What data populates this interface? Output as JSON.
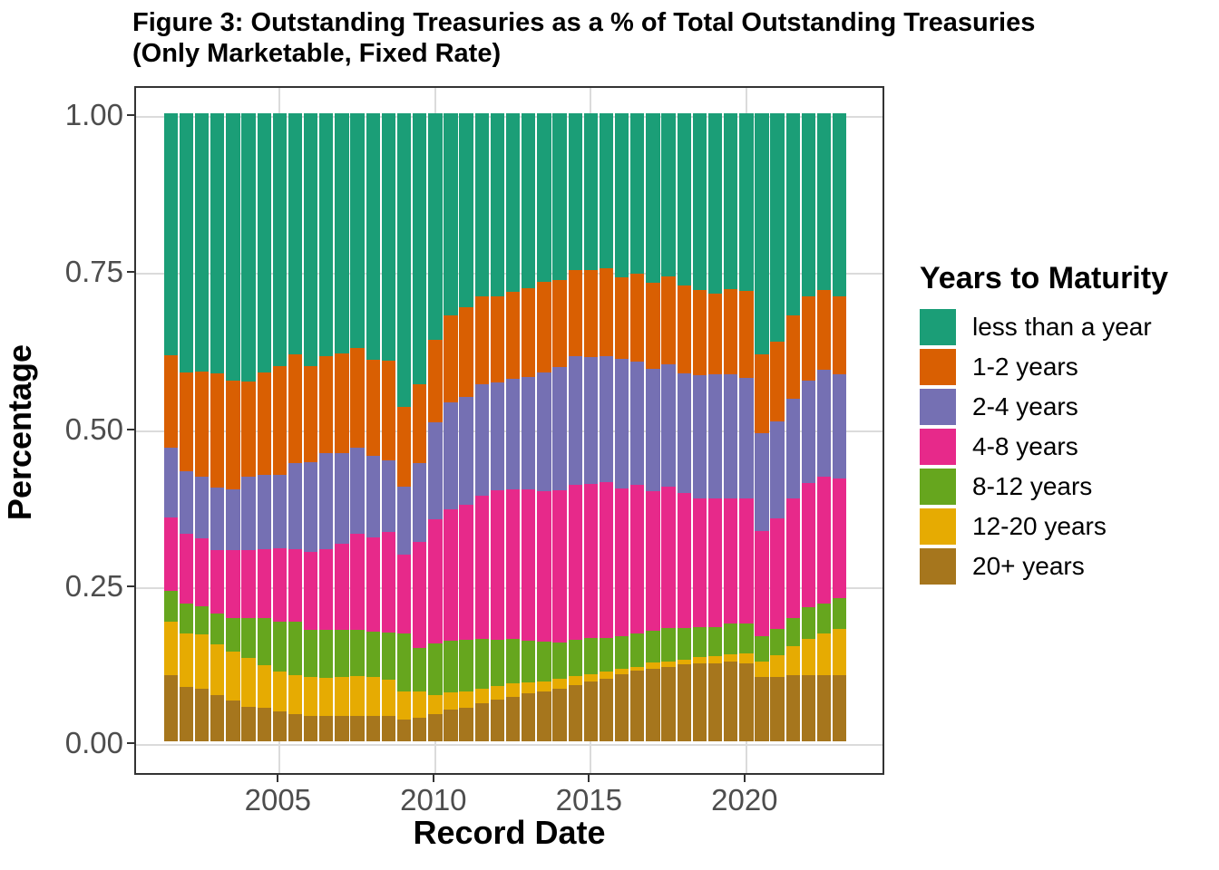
{
  "title": {
    "line1": "Figure 3: Outstanding Treasuries as a % of Total Outstanding Treasuries",
    "line2": "(Only Marketable, Fixed Rate)"
  },
  "y_axis": {
    "label": "Percentage",
    "ticks": [
      {
        "label": "0.00",
        "value": 0.0
      },
      {
        "label": "0.25",
        "value": 0.25
      },
      {
        "label": "0.50",
        "value": 0.5
      },
      {
        "label": "0.75",
        "value": 0.75
      },
      {
        "label": "1.00",
        "value": 1.0
      }
    ]
  },
  "x_axis": {
    "label": "Record Date",
    "ticks": [
      {
        "label": "2005",
        "year": 2005
      },
      {
        "label": "2010",
        "year": 2010
      },
      {
        "label": "2015",
        "year": 2015
      },
      {
        "label": "2020",
        "year": 2020
      }
    ]
  },
  "legend": {
    "title": "Years to Maturity"
  },
  "colors": {
    "background": "#FFFFFF",
    "panel_border": "#333333",
    "gridline": "#DBDBDB",
    "tick_label": "#4D4D4D",
    "tick_mark": "#333333",
    "axis_title": "#000000"
  },
  "chart_data": {
    "type": "bar",
    "stacked": true,
    "normalized": true,
    "title": "Figure 3: Outstanding Treasuries as a % of Total Outstanding Treasuries (Only Marketable, Fixed Rate)",
    "xlabel": "Record Date",
    "ylabel": "Percentage",
    "ylim": [
      0,
      1
    ],
    "x_start": 2001.5,
    "x_step": 0.5,
    "grid": "major",
    "legend_position": "right",
    "stack_order_bottom_to_top": [
      "20+ years",
      "12-20 years",
      "8-12 years",
      "4-8 years",
      "2-4 years",
      "1-2 years",
      "less than a year"
    ],
    "x": [
      2001.5,
      2002.0,
      2002.5,
      2003.0,
      2003.5,
      2004.0,
      2004.5,
      2005.0,
      2005.5,
      2006.0,
      2006.5,
      2007.0,
      2007.5,
      2008.0,
      2008.5,
      2009.0,
      2009.5,
      2010.0,
      2010.5,
      2011.0,
      2011.5,
      2012.0,
      2012.5,
      2013.0,
      2013.5,
      2014.0,
      2014.5,
      2015.0,
      2015.5,
      2016.0,
      2016.5,
      2017.0,
      2017.5,
      2018.0,
      2018.5,
      2019.0,
      2019.5,
      2020.0,
      2020.5,
      2021.0,
      2021.5,
      2022.0,
      2022.5,
      2023.0
    ],
    "series": [
      {
        "name": "less than a year",
        "color": "#1B9E77",
        "values": [
          0.385,
          0.412,
          0.411,
          0.414,
          0.425,
          0.427,
          0.412,
          0.403,
          0.384,
          0.403,
          0.387,
          0.383,
          0.373,
          0.392,
          0.394,
          0.467,
          0.432,
          0.361,
          0.322,
          0.309,
          0.291,
          0.291,
          0.284,
          0.278,
          0.268,
          0.265,
          0.25,
          0.25,
          0.246,
          0.261,
          0.256,
          0.27,
          0.259,
          0.274,
          0.282,
          0.287,
          0.28,
          0.283,
          0.384,
          0.364,
          0.321,
          0.291,
          0.282,
          0.291
        ]
      },
      {
        "name": "1-2 years",
        "color": "#D95F02",
        "values": [
          0.148,
          0.158,
          0.167,
          0.182,
          0.174,
          0.151,
          0.163,
          0.173,
          0.173,
          0.153,
          0.154,
          0.158,
          0.159,
          0.154,
          0.158,
          0.127,
          0.125,
          0.131,
          0.138,
          0.143,
          0.141,
          0.137,
          0.139,
          0.142,
          0.145,
          0.139,
          0.136,
          0.138,
          0.141,
          0.13,
          0.14,
          0.137,
          0.141,
          0.14,
          0.135,
          0.129,
          0.136,
          0.138,
          0.126,
          0.127,
          0.134,
          0.135,
          0.127,
          0.125
        ]
      },
      {
        "name": "2-4 years",
        "color": "#7570B3",
        "values": [
          0.111,
          0.1,
          0.098,
          0.099,
          0.097,
          0.117,
          0.119,
          0.117,
          0.137,
          0.143,
          0.153,
          0.145,
          0.138,
          0.129,
          0.114,
          0.108,
          0.126,
          0.155,
          0.17,
          0.172,
          0.177,
          0.172,
          0.176,
          0.179,
          0.188,
          0.196,
          0.205,
          0.202,
          0.2,
          0.206,
          0.195,
          0.194,
          0.195,
          0.191,
          0.196,
          0.197,
          0.197,
          0.192,
          0.155,
          0.154,
          0.158,
          0.162,
          0.169,
          0.165
        ]
      },
      {
        "name": "4-8 years",
        "color": "#E7298A",
        "values": [
          0.116,
          0.11,
          0.109,
          0.101,
          0.107,
          0.109,
          0.109,
          0.116,
          0.116,
          0.123,
          0.129,
          0.137,
          0.152,
          0.15,
          0.161,
          0.126,
          0.169,
          0.197,
          0.21,
          0.215,
          0.228,
          0.238,
          0.238,
          0.241,
          0.24,
          0.242,
          0.248,
          0.246,
          0.248,
          0.236,
          0.237,
          0.223,
          0.225,
          0.215,
          0.205,
          0.205,
          0.199,
          0.2,
          0.168,
          0.176,
          0.191,
          0.199,
          0.202,
          0.191
        ]
      },
      {
        "name": "8-12 years",
        "color": "#66A61E",
        "values": [
          0.05,
          0.048,
          0.045,
          0.05,
          0.054,
          0.063,
          0.076,
          0.08,
          0.084,
          0.076,
          0.076,
          0.074,
          0.074,
          0.073,
          0.075,
          0.093,
          0.069,
          0.082,
          0.082,
          0.082,
          0.079,
          0.074,
          0.071,
          0.066,
          0.063,
          0.058,
          0.057,
          0.057,
          0.054,
          0.052,
          0.053,
          0.051,
          0.053,
          0.05,
          0.048,
          0.047,
          0.049,
          0.047,
          0.04,
          0.042,
          0.045,
          0.05,
          0.048,
          0.049
        ]
      },
      {
        "name": "12-20 years",
        "color": "#E6AB02",
        "values": [
          0.084,
          0.085,
          0.086,
          0.08,
          0.078,
          0.078,
          0.068,
          0.064,
          0.062,
          0.061,
          0.06,
          0.062,
          0.063,
          0.062,
          0.057,
          0.044,
          0.042,
          0.031,
          0.027,
          0.025,
          0.024,
          0.022,
          0.021,
          0.018,
          0.017,
          0.017,
          0.015,
          0.012,
          0.012,
          0.008,
          0.006,
          0.01,
          0.008,
          0.007,
          0.01,
          0.011,
          0.012,
          0.016,
          0.024,
          0.034,
          0.046,
          0.057,
          0.066,
          0.073
        ]
      },
      {
        "name": "20+ years",
        "color": "#A6761D",
        "values": [
          0.106,
          0.087,
          0.084,
          0.074,
          0.065,
          0.055,
          0.053,
          0.047,
          0.044,
          0.041,
          0.041,
          0.041,
          0.041,
          0.04,
          0.041,
          0.035,
          0.037,
          0.043,
          0.051,
          0.054,
          0.06,
          0.066,
          0.071,
          0.076,
          0.079,
          0.083,
          0.089,
          0.095,
          0.099,
          0.107,
          0.113,
          0.115,
          0.119,
          0.123,
          0.124,
          0.124,
          0.127,
          0.124,
          0.103,
          0.103,
          0.105,
          0.106,
          0.106,
          0.106
        ]
      }
    ]
  }
}
